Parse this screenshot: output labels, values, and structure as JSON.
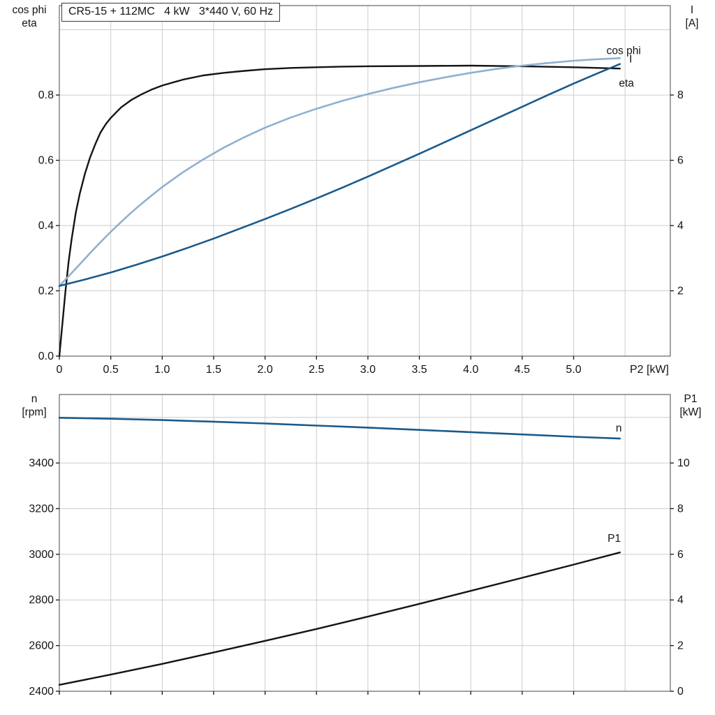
{
  "title_box": "CR5-15 + 112MC   4 kW   3*440 V, 60 Hz",
  "axis_corner_labels": {
    "top_left": [
      "cos phi",
      "eta"
    ],
    "top_right": [
      "I",
      "[A]"
    ],
    "bottom_left": [
      "n",
      "[rpm]"
    ],
    "bottom_right": [
      "P1",
      "[kW]"
    ]
  },
  "colors": {
    "curve_black": "#141414",
    "curve_dark_blue": "#1a5a8c",
    "curve_light_blue": "#8fb0cf",
    "grid": "#cccccc",
    "frame": "#444444",
    "tick": "#141414",
    "background": "#ffffff"
  },
  "chart_data": [
    {
      "type": "line",
      "plot": "top",
      "title": "CR5-15 + 112MC   4 kW   3*440 V, 60 Hz",
      "x_axis": {
        "label": "P2 [kW]",
        "min": 0,
        "max": 5.94,
        "ticks": [
          0,
          0.5,
          1,
          1.5,
          2,
          2.5,
          3,
          3.5,
          4,
          4.5,
          5
        ],
        "tick_labels": [
          "0",
          "0.5",
          "1.0",
          "1.5",
          "2.0",
          "2.5",
          "3.0",
          "3.5",
          "4.0",
          "4.5",
          "5.0"
        ],
        "grid": [
          0.5,
          1,
          1.5,
          2,
          2.5,
          3,
          3.5,
          4,
          4.5,
          5,
          5.5
        ]
      },
      "y_left": {
        "label": "cos phi / eta",
        "min": 0,
        "max": 1.074,
        "ticks": [
          0,
          0.2,
          0.4,
          0.6,
          0.8
        ],
        "tick_labels": [
          "0.0",
          "0.2",
          "0.4",
          "0.6",
          "0.8"
        ],
        "grid": [
          0.2,
          0.4,
          0.6,
          0.8,
          1.0
        ]
      },
      "y_right": {
        "label": "I [A]",
        "min": 0,
        "max": 10.74,
        "ticks": [
          2,
          4,
          6,
          8
        ],
        "tick_labels": [
          "2",
          "4",
          "6",
          "8"
        ]
      },
      "series": [
        {
          "name": "eta",
          "label": "eta",
          "axis": "left",
          "color": "#141414",
          "width": 2.4,
          "label_pos": [
            5.44,
            0.836
          ],
          "points": [
            [
              0,
              0
            ],
            [
              0.03,
              0.1
            ],
            [
              0.06,
              0.2
            ],
            [
              0.09,
              0.29
            ],
            [
              0.12,
              0.36
            ],
            [
              0.16,
              0.44
            ],
            [
              0.2,
              0.5
            ],
            [
              0.25,
              0.56
            ],
            [
              0.3,
              0.61
            ],
            [
              0.35,
              0.65
            ],
            [
              0.4,
              0.685
            ],
            [
              0.45,
              0.71
            ],
            [
              0.5,
              0.73
            ],
            [
              0.6,
              0.762
            ],
            [
              0.7,
              0.785
            ],
            [
              0.8,
              0.802
            ],
            [
              0.9,
              0.817
            ],
            [
              1,
              0.829
            ],
            [
              1.2,
              0.847
            ],
            [
              1.4,
              0.86
            ],
            [
              1.6,
              0.868
            ],
            [
              1.8,
              0.874
            ],
            [
              2,
              0.879
            ],
            [
              2.25,
              0.883
            ],
            [
              2.5,
              0.885
            ],
            [
              2.75,
              0.887
            ],
            [
              3,
              0.888
            ],
            [
              3.5,
              0.889
            ],
            [
              4,
              0.89
            ],
            [
              4.5,
              0.888
            ],
            [
              5,
              0.885
            ],
            [
              5.45,
              0.881
            ]
          ]
        },
        {
          "name": "cos-phi",
          "label": "cos phi",
          "axis": "left",
          "color": "#8fb0cf",
          "width": 2.6,
          "label_pos": [
            5.32,
            0.936
          ],
          "points": [
            [
              0,
              0.215
            ],
            [
              0.1,
              0.248
            ],
            [
              0.2,
              0.282
            ],
            [
              0.3,
              0.316
            ],
            [
              0.4,
              0.349
            ],
            [
              0.5,
              0.381
            ],
            [
              0.6,
              0.411
            ],
            [
              0.7,
              0.44
            ],
            [
              0.8,
              0.467
            ],
            [
              0.9,
              0.493
            ],
            [
              1,
              0.518
            ],
            [
              1.2,
              0.563
            ],
            [
              1.4,
              0.603
            ],
            [
              1.6,
              0.639
            ],
            [
              1.8,
              0.671
            ],
            [
              2,
              0.7
            ],
            [
              2.25,
              0.731
            ],
            [
              2.5,
              0.758
            ],
            [
              2.75,
              0.782
            ],
            [
              3,
              0.803
            ],
            [
              3.25,
              0.822
            ],
            [
              3.5,
              0.839
            ],
            [
              3.75,
              0.854
            ],
            [
              4,
              0.868
            ],
            [
              4.25,
              0.88
            ],
            [
              4.5,
              0.89
            ],
            [
              4.75,
              0.898
            ],
            [
              5,
              0.905
            ],
            [
              5.2,
              0.909
            ],
            [
              5.45,
              0.913
            ]
          ]
        },
        {
          "name": "current",
          "label": "I",
          "axis": "right",
          "color": "#1a5a8c",
          "width": 2.6,
          "label_pos": [
            5.54,
            9.1
          ],
          "points": [
            [
              0,
              2.15
            ],
            [
              0.25,
              2.35
            ],
            [
              0.5,
              2.56
            ],
            [
              0.75,
              2.8
            ],
            [
              1,
              3.05
            ],
            [
              1.25,
              3.32
            ],
            [
              1.5,
              3.6
            ],
            [
              1.75,
              3.9
            ],
            [
              2,
              4.2
            ],
            [
              2.25,
              4.51
            ],
            [
              2.5,
              4.83
            ],
            [
              2.75,
              5.16
            ],
            [
              3,
              5.5
            ],
            [
              3.25,
              5.85
            ],
            [
              3.5,
              6.2
            ],
            [
              3.75,
              6.56
            ],
            [
              4,
              6.92
            ],
            [
              4.25,
              7.28
            ],
            [
              4.5,
              7.64
            ],
            [
              4.75,
              8
            ],
            [
              5,
              8.35
            ],
            [
              5.2,
              8.62
            ],
            [
              5.45,
              8.95
            ]
          ]
        }
      ]
    },
    {
      "type": "line",
      "plot": "bottom",
      "title": "",
      "x_axis": {
        "label": "",
        "min": 0,
        "max": 5.94,
        "ticks": [
          0,
          0.5,
          1,
          1.5,
          2,
          2.5,
          3,
          3.5,
          4,
          4.5,
          5
        ],
        "tick_labels": [],
        "grid": [
          0.5,
          1,
          1.5,
          2,
          2.5,
          3,
          3.5,
          4,
          4.5,
          5,
          5.5
        ]
      },
      "y_left": {
        "label": "n [rpm]",
        "min": 2400,
        "max": 3700,
        "ticks": [
          2400,
          2600,
          2800,
          3000,
          3200,
          3400
        ],
        "tick_labels": [
          "2400",
          "2600",
          "2800",
          "3000",
          "3200",
          "3400"
        ],
        "grid": [
          2600,
          2800,
          3000,
          3200,
          3400,
          3600
        ]
      },
      "y_right": {
        "label": "P1 [kW]",
        "min": 0,
        "max": 13,
        "ticks": [
          0,
          2,
          4,
          6,
          8,
          10
        ],
        "tick_labels": [
          "0",
          "2",
          "4",
          "6",
          "8",
          "10"
        ]
      },
      "series": [
        {
          "name": "speed",
          "label": "n",
          "axis": "left",
          "color": "#1a5a8c",
          "width": 2.6,
          "label_pos": [
            5.41,
            3553
          ],
          "points": [
            [
              0,
              3598
            ],
            [
              0.5,
              3594
            ],
            [
              1,
              3588
            ],
            [
              1.5,
              3581
            ],
            [
              2,
              3573
            ],
            [
              2.5,
              3564
            ],
            [
              3,
              3555
            ],
            [
              3.5,
              3545
            ],
            [
              4,
              3535
            ],
            [
              4.5,
              3525
            ],
            [
              5,
              3515
            ],
            [
              5.45,
              3507
            ]
          ]
        },
        {
          "name": "p1",
          "label": "P1",
          "axis": "right",
          "color": "#141414",
          "width": 2.4,
          "label_pos": [
            5.33,
            6.7
          ],
          "points": [
            [
              0,
              0.28
            ],
            [
              0.5,
              0.73
            ],
            [
              1,
              1.2
            ],
            [
              1.5,
              1.7
            ],
            [
              2,
              2.21
            ],
            [
              2.5,
              2.73
            ],
            [
              3,
              3.27
            ],
            [
              3.5,
              3.83
            ],
            [
              4,
              4.4
            ],
            [
              4.5,
              4.97
            ],
            [
              5,
              5.55
            ],
            [
              5.45,
              6.08
            ]
          ]
        }
      ]
    }
  ]
}
